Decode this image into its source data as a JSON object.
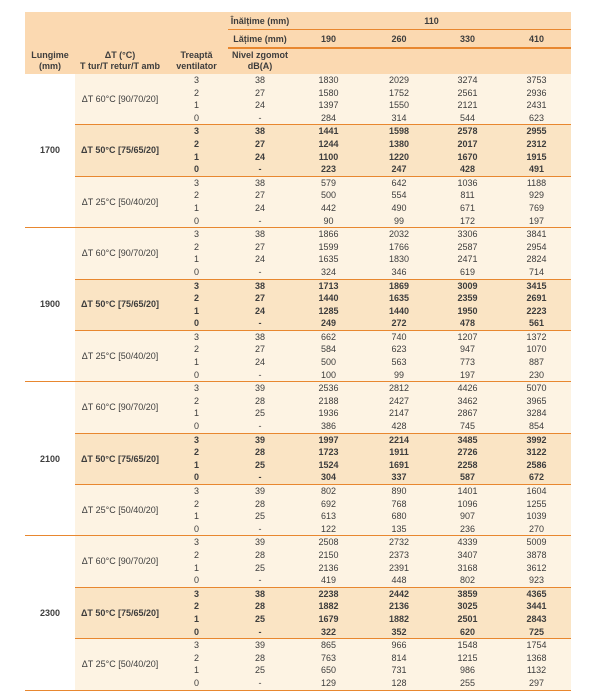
{
  "colors": {
    "header_bg": "#FBD9B1",
    "row_bg_light": "#FDF3E3",
    "row_bg_highlight": "#FAE4C4",
    "accent_line": "#E8872F",
    "text": "#3D3D3D"
  },
  "table": {
    "header": {
      "height_label": "Înălțime (mm)",
      "height_value": "110",
      "width_label": "Lățime (mm)",
      "width_values": [
        "190",
        "260",
        "330",
        "410"
      ],
      "length_label": [
        "Lungime",
        "(mm)"
      ],
      "delta_t_label": [
        "ΔT (°C)",
        "T tur/T retur/T amb"
      ],
      "fan_step_label": [
        "Treaptă",
        "ventilator"
      ],
      "noise_label": [
        "Nivel zgomot",
        "dB(A)"
      ]
    },
    "blocks": [
      {
        "length": "1700",
        "sections": [
          {
            "label": "ΔT 60°C [90/70/20]",
            "highlight": false,
            "rows": [
              {
                "step": "3",
                "noise": "38",
                "values": [
                  "1830",
                  "2029",
                  "3274",
                  "3753"
                ]
              },
              {
                "step": "2",
                "noise": "27",
                "values": [
                  "1580",
                  "1752",
                  "2561",
                  "2936"
                ]
              },
              {
                "step": "1",
                "noise": "24",
                "values": [
                  "1397",
                  "1550",
                  "2121",
                  "2431"
                ]
              },
              {
                "step": "0",
                "noise": "-",
                "values": [
                  "284",
                  "314",
                  "544",
                  "623"
                ]
              }
            ]
          },
          {
            "label": "ΔT 50°C [75/65/20]",
            "highlight": true,
            "rows": [
              {
                "step": "3",
                "noise": "38",
                "values": [
                  "1441",
                  "1598",
                  "2578",
                  "2955"
                ]
              },
              {
                "step": "2",
                "noise": "27",
                "values": [
                  "1244",
                  "1380",
                  "2017",
                  "2312"
                ]
              },
              {
                "step": "1",
                "noise": "24",
                "values": [
                  "1100",
                  "1220",
                  "1670",
                  "1915"
                ]
              },
              {
                "step": "0",
                "noise": "-",
                "values": [
                  "223",
                  "247",
                  "428",
                  "491"
                ]
              }
            ]
          },
          {
            "label": "ΔT 25°C [50/40/20]",
            "highlight": false,
            "rows": [
              {
                "step": "3",
                "noise": "38",
                "values": [
                  "579",
                  "642",
                  "1036",
                  "1188"
                ]
              },
              {
                "step": "2",
                "noise": "27",
                "values": [
                  "500",
                  "554",
                  "811",
                  "929"
                ]
              },
              {
                "step": "1",
                "noise": "24",
                "values": [
                  "442",
                  "490",
                  "671",
                  "769"
                ]
              },
              {
                "step": "0",
                "noise": "-",
                "values": [
                  "90",
                  "99",
                  "172",
                  "197"
                ]
              }
            ]
          }
        ]
      },
      {
        "length": "1900",
        "sections": [
          {
            "label": "ΔT 60°C [90/70/20]",
            "highlight": false,
            "rows": [
              {
                "step": "3",
                "noise": "38",
                "values": [
                  "1866",
                  "2032",
                  "3306",
                  "3841"
                ]
              },
              {
                "step": "2",
                "noise": "27",
                "values": [
                  "1599",
                  "1766",
                  "2587",
                  "2954"
                ]
              },
              {
                "step": "1",
                "noise": "24",
                "values": [
                  "1635",
                  "1830",
                  "2471",
                  "2824"
                ]
              },
              {
                "step": "0",
                "noise": "-",
                "values": [
                  "324",
                  "346",
                  "619",
                  "714"
                ]
              }
            ]
          },
          {
            "label": "ΔT 50°C [75/65/20]",
            "highlight": true,
            "rows": [
              {
                "step": "3",
                "noise": "38",
                "values": [
                  "1713",
                  "1869",
                  "3009",
                  "3415"
                ]
              },
              {
                "step": "2",
                "noise": "27",
                "values": [
                  "1440",
                  "1635",
                  "2359",
                  "2691"
                ]
              },
              {
                "step": "1",
                "noise": "24",
                "values": [
                  "1285",
                  "1440",
                  "1950",
                  "2223"
                ]
              },
              {
                "step": "0",
                "noise": "-",
                "values": [
                  "249",
                  "272",
                  "478",
                  "561"
                ]
              }
            ]
          },
          {
            "label": "ΔT 25°C [50/40/20]",
            "highlight": false,
            "rows": [
              {
                "step": "3",
                "noise": "38",
                "values": [
                  "662",
                  "740",
                  "1207",
                  "1372"
                ]
              },
              {
                "step": "2",
                "noise": "27",
                "values": [
                  "584",
                  "623",
                  "947",
                  "1070"
                ]
              },
              {
                "step": "1",
                "noise": "24",
                "values": [
                  "500",
                  "563",
                  "773",
                  "887"
                ]
              },
              {
                "step": "0",
                "noise": "-",
                "values": [
                  "100",
                  "99",
                  "197",
                  "230"
                ]
              }
            ]
          }
        ]
      },
      {
        "length": "2100",
        "sections": [
          {
            "label": "ΔT 60°C [90/70/20]",
            "highlight": false,
            "rows": [
              {
                "step": "3",
                "noise": "39",
                "values": [
                  "2536",
                  "2812",
                  "4426",
                  "5070"
                ]
              },
              {
                "step": "2",
                "noise": "28",
                "values": [
                  "2188",
                  "2427",
                  "3462",
                  "3965"
                ]
              },
              {
                "step": "1",
                "noise": "25",
                "values": [
                  "1936",
                  "2147",
                  "2867",
                  "3284"
                ]
              },
              {
                "step": "0",
                "noise": "-",
                "values": [
                  "386",
                  "428",
                  "745",
                  "854"
                ]
              }
            ]
          },
          {
            "label": "ΔT 50°C [75/65/20]",
            "highlight": true,
            "rows": [
              {
                "step": "3",
                "noise": "39",
                "values": [
                  "1997",
                  "2214",
                  "3485",
                  "3992"
                ]
              },
              {
                "step": "2",
                "noise": "28",
                "values": [
                  "1723",
                  "1911",
                  "2726",
                  "3122"
                ]
              },
              {
                "step": "1",
                "noise": "25",
                "values": [
                  "1524",
                  "1691",
                  "2258",
                  "2586"
                ]
              },
              {
                "step": "0",
                "noise": "-",
                "values": [
                  "304",
                  "337",
                  "587",
                  "672"
                ]
              }
            ]
          },
          {
            "label": "ΔT 25°C [50/40/20]",
            "highlight": false,
            "rows": [
              {
                "step": "3",
                "noise": "39",
                "values": [
                  "802",
                  "890",
                  "1401",
                  "1604"
                ]
              },
              {
                "step": "2",
                "noise": "28",
                "values": [
                  "692",
                  "768",
                  "1096",
                  "1255"
                ]
              },
              {
                "step": "1",
                "noise": "25",
                "values": [
                  "613",
                  "680",
                  "907",
                  "1039"
                ]
              },
              {
                "step": "0",
                "noise": "-",
                "values": [
                  "122",
                  "135",
                  "236",
                  "270"
                ]
              }
            ]
          }
        ]
      },
      {
        "length": "2300",
        "sections": [
          {
            "label": "ΔT 60°C [90/70/20]",
            "highlight": false,
            "rows": [
              {
                "step": "3",
                "noise": "39",
                "values": [
                  "2508",
                  "2732",
                  "4339",
                  "5009"
                ]
              },
              {
                "step": "2",
                "noise": "28",
                "values": [
                  "2150",
                  "2373",
                  "3407",
                  "3878"
                ]
              },
              {
                "step": "1",
                "noise": "25",
                "values": [
                  "2136",
                  "2391",
                  "3168",
                  "3612"
                ]
              },
              {
                "step": "0",
                "noise": "-",
                "values": [
                  "419",
                  "448",
                  "802",
                  "923"
                ]
              }
            ]
          },
          {
            "label": "ΔT 50°C [75/65/20]",
            "highlight": true,
            "rows": [
              {
                "step": "3",
                "noise": "38",
                "values": [
                  "2238",
                  "2442",
                  "3859",
                  "4365"
                ]
              },
              {
                "step": "2",
                "noise": "28",
                "values": [
                  "1882",
                  "2136",
                  "3025",
                  "3441"
                ]
              },
              {
                "step": "1",
                "noise": "25",
                "values": [
                  "1679",
                  "1882",
                  "2501",
                  "2843"
                ]
              },
              {
                "step": "0",
                "noise": "-",
                "values": [
                  "322",
                  "352",
                  "620",
                  "725"
                ]
              }
            ]
          },
          {
            "label": "ΔT 25°C [50/40/20]",
            "highlight": false,
            "rows": [
              {
                "step": "3",
                "noise": "39",
                "values": [
                  "865",
                  "966",
                  "1548",
                  "1754"
                ]
              },
              {
                "step": "2",
                "noise": "28",
                "values": [
                  "763",
                  "814",
                  "1215",
                  "1368"
                ]
              },
              {
                "step": "1",
                "noise": "25",
                "values": [
                  "650",
                  "731",
                  "986",
                  "1132"
                ]
              },
              {
                "step": "0",
                "noise": "-",
                "values": [
                  "129",
                  "128",
                  "255",
                  "297"
                ]
              }
            ]
          }
        ]
      }
    ]
  }
}
